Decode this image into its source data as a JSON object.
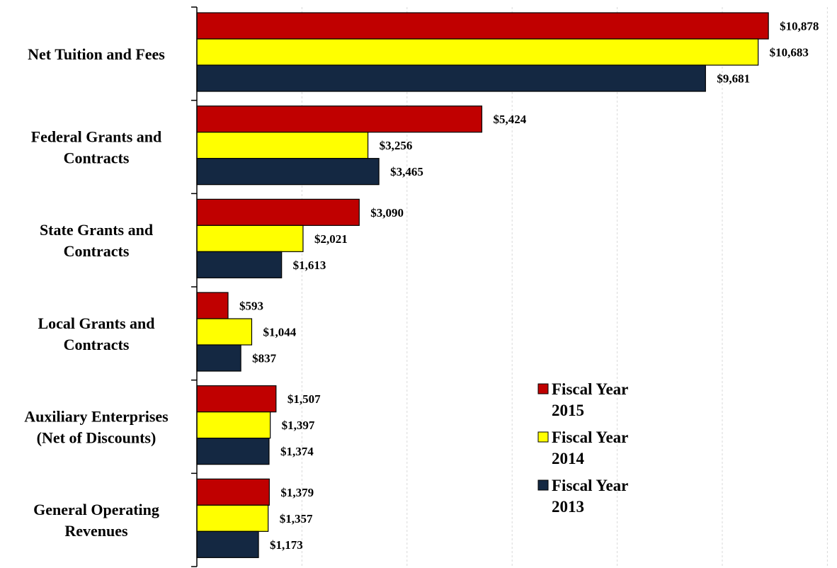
{
  "chart_data": {
    "type": "bar",
    "orientation": "horizontal",
    "categories": [
      "Net Tuition and Fees",
      "Federal Grants and Contracts",
      "State Grants and Contracts",
      "Local Grants and Contracts",
      "Auxiliary Enterprises (Net of Discounts)",
      "General Operating Revenues"
    ],
    "category_lines": [
      [
        "Net Tuition and Fees"
      ],
      [
        "Federal Grants and",
        "Contracts"
      ],
      [
        "State Grants and",
        "Contracts"
      ],
      [
        "Local Grants and",
        "Contracts"
      ],
      [
        "Auxiliary Enterprises",
        "(Net of Discounts)"
      ],
      [
        "General Operating",
        "Revenues"
      ]
    ],
    "series": [
      {
        "name": "Fiscal Year 2015",
        "legend_lines": [
          "Fiscal Year",
          "2015"
        ],
        "color": "#c00000",
        "values": [
          10878,
          5424,
          3090,
          593,
          1507,
          1379
        ],
        "labels": [
          "$10,878",
          "$5,424",
          "$3,090",
          "$593",
          "$1,507",
          "$1,379"
        ]
      },
      {
        "name": "Fiscal Year 2014",
        "legend_lines": [
          "Fiscal Year",
          "2014"
        ],
        "color": "#ffff00",
        "values": [
          10683,
          3256,
          2021,
          1044,
          1397,
          1357
        ],
        "labels": [
          "$10,683",
          "$3,256",
          "$2,021",
          "$1,044",
          "$1,397",
          "$1,357"
        ]
      },
      {
        "name": "Fiscal Year 2013",
        "legend_lines": [
          "Fiscal Year",
          "2013"
        ],
        "color": "#142842",
        "values": [
          9681,
          3465,
          1613,
          837,
          1374,
          1173
        ],
        "labels": [
          "$9,681",
          "$3,465",
          "$1,613",
          "$837",
          "$1,374",
          "$1,173"
        ]
      }
    ],
    "xlim": [
      0,
      12000
    ],
    "grid": true,
    "legend_position": "bottom-right"
  }
}
